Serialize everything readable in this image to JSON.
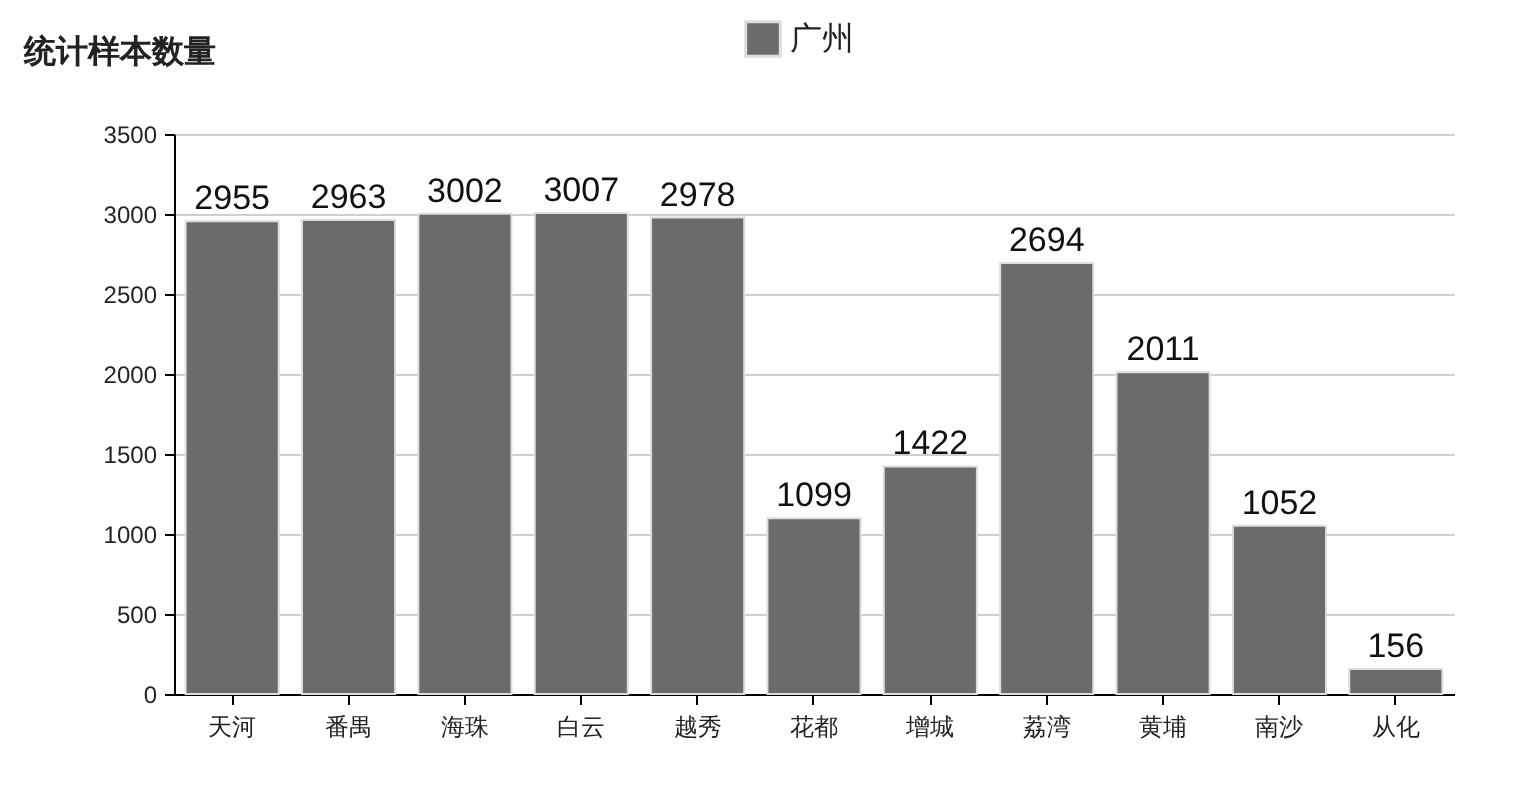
{
  "chart_data": {
    "type": "bar",
    "title": "统计样本数量",
    "categories": [
      "天河",
      "番禺",
      "海珠",
      "白云",
      "越秀",
      "花都",
      "增城",
      "荔湾",
      "黄埔",
      "南沙",
      "从化"
    ],
    "series": [
      {
        "name": "广州",
        "color": "#6b6b6b",
        "values": [
          2955,
          2963,
          3002,
          3007,
          2978,
          1099,
          1422,
          2694,
          2011,
          1052,
          156
        ]
      }
    ],
    "ylim": [
      0,
      3500
    ],
    "yticks": [
      0,
      500,
      1000,
      1500,
      2000,
      2500,
      3000,
      3500
    ],
    "grid": "y",
    "legend": "top",
    "data_labels": true
  }
}
